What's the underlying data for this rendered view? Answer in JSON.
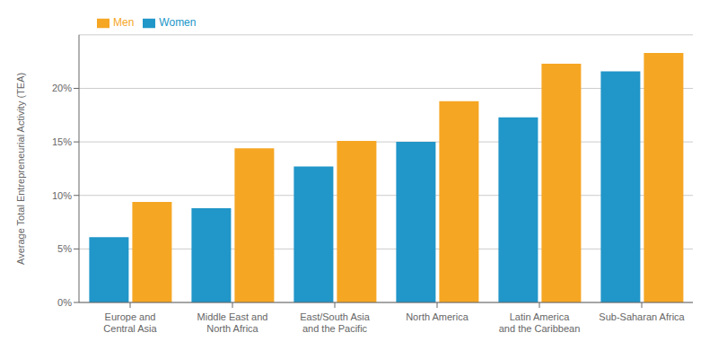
{
  "chart_data": {
    "type": "bar",
    "categories": [
      "Europe and\nCentral Asia",
      "Middle East and\nNorth Africa",
      "East/South Asia\nand the Pacific",
      "North America",
      "Latin America\nand the Caribbean",
      "Sub-Saharan Africa"
    ],
    "series": [
      {
        "name": "Women",
        "color": "#2196C8",
        "values": [
          6.1,
          8.8,
          12.7,
          15.0,
          17.3,
          21.6
        ]
      },
      {
        "name": "Men",
        "color": "#F5A623",
        "values": [
          9.4,
          14.4,
          15.1,
          18.8,
          22.3,
          23.3
        ]
      }
    ],
    "ylabel": "Average Total Entrepreneurial Activity (TEA)",
    "ylim": [
      0,
      25
    ],
    "yticks": [
      {
        "value": 0,
        "label": "0%"
      },
      {
        "value": 5,
        "label": "5%"
      },
      {
        "value": 10,
        "label": "10%"
      },
      {
        "value": 15,
        "label": "15%"
      },
      {
        "value": 20,
        "label": "20%"
      }
    ],
    "grid": true,
    "legend": "upper left"
  }
}
